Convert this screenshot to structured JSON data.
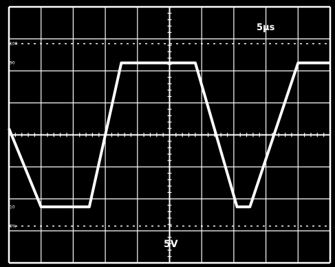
{
  "chart_data": {
    "type": "line",
    "title": "",
    "xlabel": "",
    "ylabel": "",
    "timebase_label": "5µs",
    "volts_label": "5V",
    "marker_labels": {
      "p100": "100",
      "p90": "90",
      "p10": "10",
      "p0": "0%"
    },
    "x_divisions": 10,
    "y_divisions": 8,
    "xlim": [
      0,
      10
    ],
    "ylim": [
      -4,
      4
    ],
    "grid": true,
    "series": [
      {
        "x": [
          0,
          1.0,
          2.5,
          3.5,
          5.8,
          7.1,
          7.5,
          9.0,
          10.0
        ],
        "y": [
          0.2,
          -2.25,
          -2.25,
          2.25,
          2.25,
          -2.25,
          -2.25,
          2.25,
          2.25
        ]
      }
    ],
    "colors": {
      "background": "#000000",
      "grid": "#ffffff",
      "trace": "#ffffff"
    }
  }
}
